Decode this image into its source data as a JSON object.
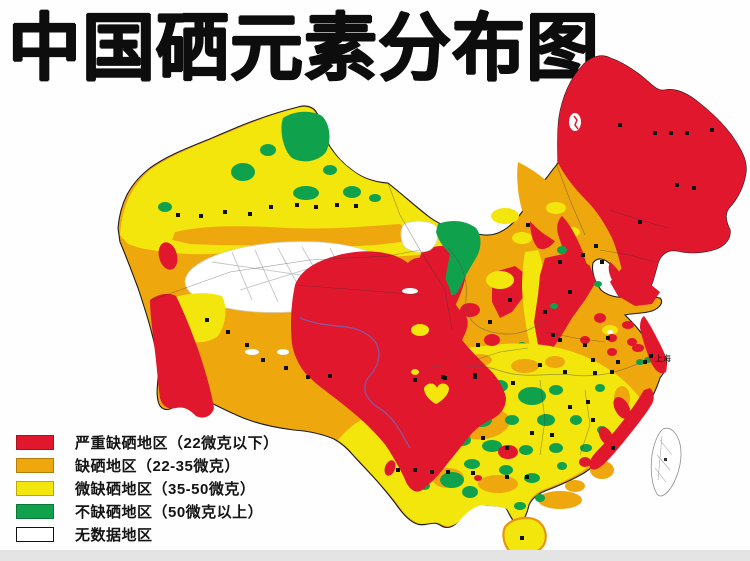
{
  "title": "中国硒元素分布图",
  "legend": {
    "items": [
      {
        "name": "severe-selenium-deficient",
        "label": "严重缺硒地区（22微克以下）",
        "color": "#E1182D"
      },
      {
        "name": "selenium-deficient",
        "label": "缺硒地区（22-35微克）",
        "color": "#EFA70E"
      },
      {
        "name": "mild-selenium-deficient",
        "label": "微缺硒地区（35-50微克）",
        "color": "#F3E60C"
      },
      {
        "name": "non-deficient",
        "label": "不缺硒地区（50微克以上）",
        "color": "#0FA14C"
      },
      {
        "name": "no-data",
        "label": "无数据地区",
        "color": "#FFFFFF"
      }
    ]
  },
  "map": {
    "shanghai_label": "上海",
    "city_dots": [
      [
        178,
        215
      ],
      [
        201,
        216
      ],
      [
        225,
        212
      ],
      [
        250,
        214
      ],
      [
        271,
        207
      ],
      [
        297,
        205
      ],
      [
        316,
        207
      ],
      [
        337,
        205
      ],
      [
        356,
        206
      ],
      [
        207,
        320
      ],
      [
        228,
        332
      ],
      [
        247,
        345
      ],
      [
        263,
        360
      ],
      [
        286,
        368
      ],
      [
        308,
        377
      ],
      [
        330,
        376
      ],
      [
        415,
        380
      ],
      [
        445,
        378
      ],
      [
        475,
        377
      ],
      [
        398,
        470
      ],
      [
        415,
        470
      ],
      [
        432,
        472
      ],
      [
        620,
        125
      ],
      [
        655,
        133
      ],
      [
        671,
        133
      ],
      [
        687,
        133
      ],
      [
        712,
        130
      ],
      [
        677,
        185
      ],
      [
        694,
        188
      ],
      [
        640,
        222
      ],
      [
        596,
        246
      ],
      [
        528,
        225
      ],
      [
        560,
        262
      ],
      [
        583,
        255
      ],
      [
        602,
        262
      ],
      [
        570,
        292
      ],
      [
        545,
        312
      ],
      [
        560,
        340
      ],
      [
        585,
        345
      ],
      [
        608,
        338
      ],
      [
        510,
        300
      ],
      [
        490,
        322
      ],
      [
        478,
        345
      ],
      [
        553,
        335
      ],
      [
        593,
        360
      ],
      [
        618,
        362
      ],
      [
        645,
        362
      ],
      [
        595,
        373
      ],
      [
        475,
        375
      ],
      [
        443,
        377
      ],
      [
        513,
        383
      ],
      [
        540,
        365
      ],
      [
        565,
        372
      ],
      [
        612,
        372
      ],
      [
        570,
        407
      ],
      [
        588,
        402
      ],
      [
        593,
        420
      ],
      [
        613,
        448
      ],
      [
        532,
        433
      ],
      [
        552,
        435
      ],
      [
        483,
        438
      ],
      [
        507,
        448
      ],
      [
        527,
        477
      ],
      [
        507,
        477
      ],
      [
        473,
        473
      ],
      [
        448,
        472
      ],
      [
        522,
        538
      ]
    ]
  },
  "colors": {
    "red": "#E1182D",
    "orange": "#EFA70E",
    "yellow": "#F3E60C",
    "green": "#0FA14C",
    "no_data": "#FFFFFF",
    "background": "#FEFEFE",
    "bottom_bar": "#E4E4E4",
    "title_ink": "#0D0D0D"
  }
}
